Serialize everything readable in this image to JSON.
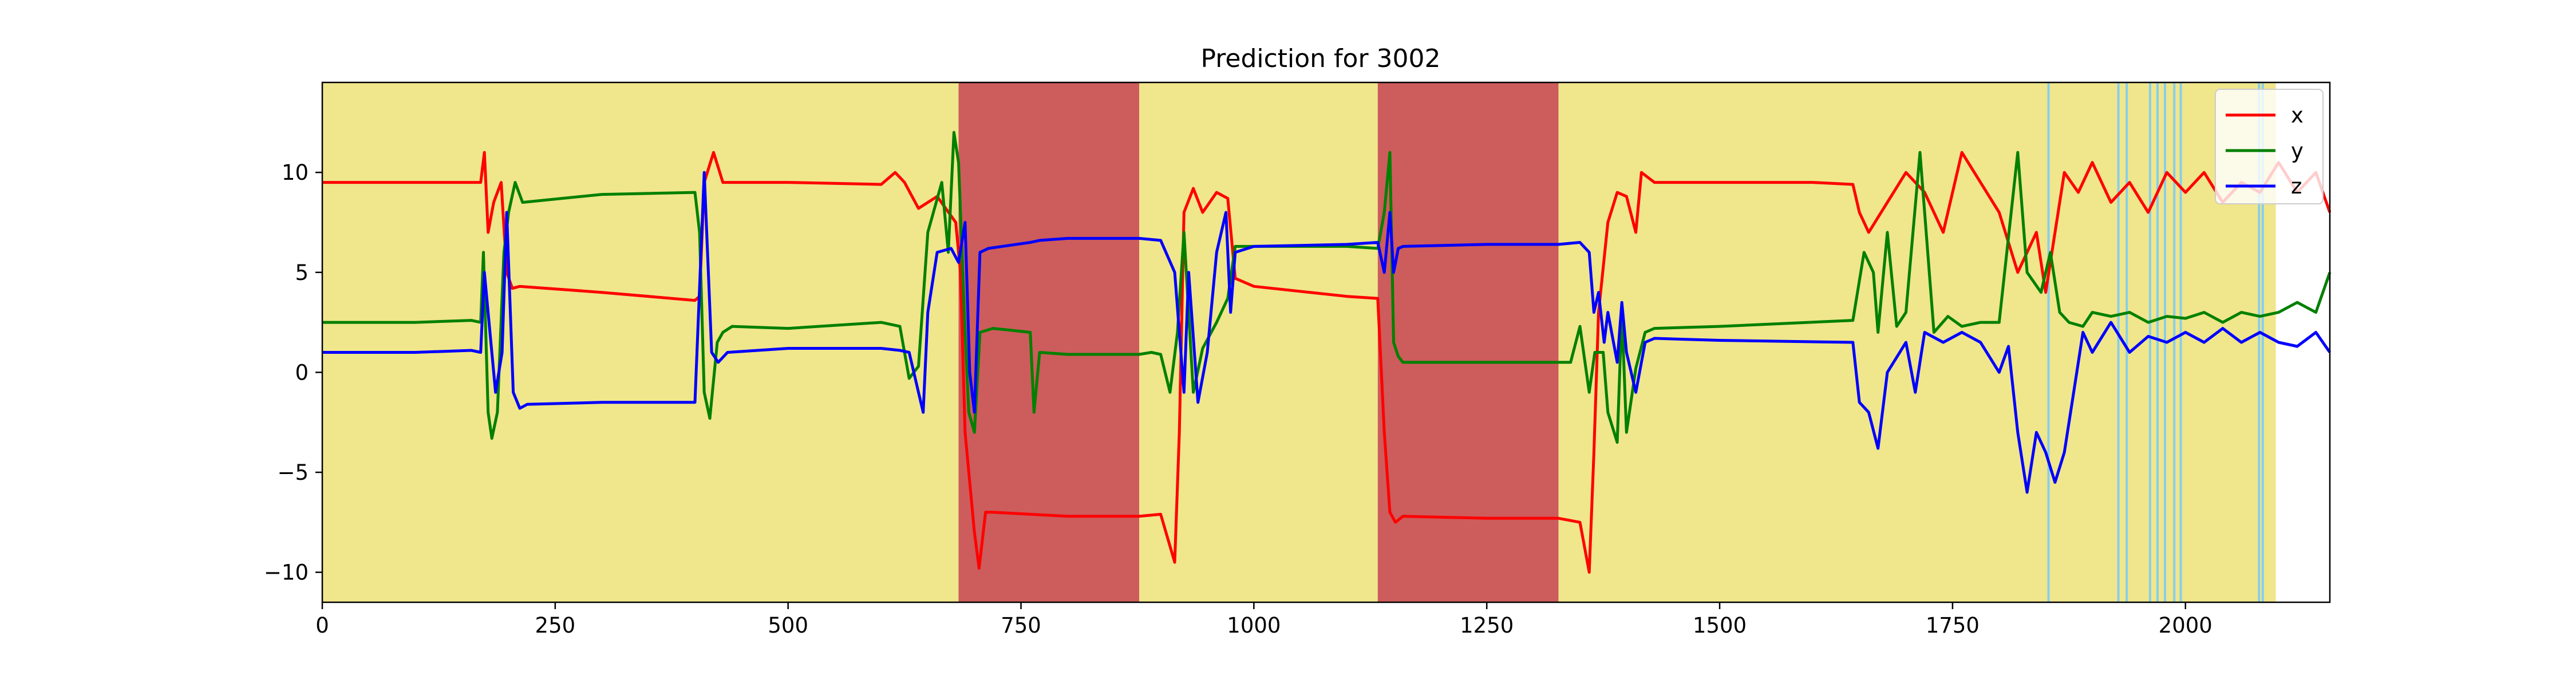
{
  "chart_data": {
    "type": "line",
    "title": "Prediction for 3002",
    "xlabel": "",
    "ylabel": "",
    "xlim": [
      0,
      2155
    ],
    "ylim": [
      -11.5,
      14.5
    ],
    "x_ticks": [
      0,
      250,
      500,
      750,
      1000,
      1250,
      1500,
      1750,
      2000
    ],
    "y_ticks": [
      -10,
      -5,
      0,
      5,
      10
    ],
    "x_tick_labels": [
      "0",
      "250",
      "500",
      "750",
      "1000",
      "1250",
      "1500",
      "1750",
      "2000"
    ],
    "y_tick_labels": [
      "−10",
      "−5",
      "0",
      "5",
      "10"
    ],
    "legend_position": "top-right",
    "grid": false,
    "background_regions": [
      {
        "x0": 0,
        "x1": 683,
        "color": "#f0e68c"
      },
      {
        "x0": 683,
        "x1": 877,
        "color": "#cd5c5c"
      },
      {
        "x0": 877,
        "x1": 1133,
        "color": "#f0e68c"
      },
      {
        "x0": 1133,
        "x1": 1327,
        "color": "#cd5c5c"
      },
      {
        "x0": 1327,
        "x1": 2097,
        "color": "#f0e68c"
      }
    ],
    "vertical_lines": {
      "color": "#87ceeb",
      "x": [
        1853,
        1928,
        1937,
        1962,
        1970,
        1978,
        1988,
        1995,
        2079,
        2083
      ]
    },
    "series": [
      {
        "name": "x",
        "color": "#ff0000",
        "points": [
          [
            0,
            9.5
          ],
          [
            160,
            9.5
          ],
          [
            170,
            9.5
          ],
          [
            174,
            11
          ],
          [
            178,
            7
          ],
          [
            184,
            8.5
          ],
          [
            192,
            9.5
          ],
          [
            198,
            5
          ],
          [
            204,
            4.2
          ],
          [
            212,
            4.3
          ],
          [
            300,
            4
          ],
          [
            400,
            3.6
          ],
          [
            405,
            3.8
          ],
          [
            410,
            9.5
          ],
          [
            420,
            11
          ],
          [
            430,
            9.5
          ],
          [
            500,
            9.5
          ],
          [
            600,
            9.4
          ],
          [
            615,
            10
          ],
          [
            625,
            9.5
          ],
          [
            640,
            8.2
          ],
          [
            660,
            8.8
          ],
          [
            680,
            7.5
          ],
          [
            685,
            5
          ],
          [
            690,
            -3
          ],
          [
            700,
            -8
          ],
          [
            705,
            -9.8
          ],
          [
            712,
            -7
          ],
          [
            720,
            -7
          ],
          [
            800,
            -7.2
          ],
          [
            877,
            -7.2
          ],
          [
            900,
            -7.1
          ],
          [
            915,
            -9.5
          ],
          [
            920,
            -3
          ],
          [
            925,
            8
          ],
          [
            935,
            9.2
          ],
          [
            945,
            8
          ],
          [
            960,
            9
          ],
          [
            972,
            8.7
          ],
          [
            980,
            4.7
          ],
          [
            1000,
            4.3
          ],
          [
            1100,
            3.8
          ],
          [
            1133,
            3.7
          ],
          [
            1140,
            -3
          ],
          [
            1146,
            -7
          ],
          [
            1152,
            -7.5
          ],
          [
            1160,
            -7.2
          ],
          [
            1250,
            -7.3
          ],
          [
            1327,
            -7.3
          ],
          [
            1350,
            -7.5
          ],
          [
            1360,
            -10
          ],
          [
            1365,
            -4
          ],
          [
            1370,
            3
          ],
          [
            1380,
            7.5
          ],
          [
            1390,
            9
          ],
          [
            1400,
            8.8
          ],
          [
            1410,
            7
          ],
          [
            1416,
            10
          ],
          [
            1430,
            9.5
          ],
          [
            1500,
            9.5
          ],
          [
            1600,
            9.5
          ],
          [
            1643,
            9.4
          ],
          [
            1650,
            8
          ],
          [
            1660,
            7
          ],
          [
            1680,
            8.5
          ],
          [
            1700,
            10
          ],
          [
            1720,
            9
          ],
          [
            1740,
            7
          ],
          [
            1760,
            11
          ],
          [
            1780,
            9.5
          ],
          [
            1800,
            8
          ],
          [
            1820,
            5
          ],
          [
            1840,
            7
          ],
          [
            1850,
            4
          ],
          [
            1860,
            7
          ],
          [
            1870,
            10
          ],
          [
            1885,
            9
          ],
          [
            1900,
            10.5
          ],
          [
            1920,
            8.5
          ],
          [
            1940,
            9.5
          ],
          [
            1960,
            8
          ],
          [
            1980,
            10
          ],
          [
            2000,
            9
          ],
          [
            2020,
            10
          ],
          [
            2040,
            8.5
          ],
          [
            2060,
            9.5
          ],
          [
            2080,
            9
          ],
          [
            2100,
            10.5
          ],
          [
            2120,
            9
          ],
          [
            2140,
            10
          ],
          [
            2155,
            8
          ]
        ]
      },
      {
        "name": "y",
        "color": "#008000",
        "points": [
          [
            0,
            2.5
          ],
          [
            100,
            2.5
          ],
          [
            160,
            2.6
          ],
          [
            170,
            2.5
          ],
          [
            173,
            6
          ],
          [
            178,
            -2
          ],
          [
            182,
            -3.3
          ],
          [
            188,
            -2
          ],
          [
            195,
            6
          ],
          [
            200,
            8
          ],
          [
            207,
            9.5
          ],
          [
            215,
            8.5
          ],
          [
            300,
            8.9
          ],
          [
            400,
            9
          ],
          [
            405,
            7
          ],
          [
            410,
            -1
          ],
          [
            416,
            -2.3
          ],
          [
            424,
            1.5
          ],
          [
            430,
            2
          ],
          [
            440,
            2.3
          ],
          [
            500,
            2.2
          ],
          [
            600,
            2.5
          ],
          [
            620,
            2.3
          ],
          [
            630,
            -0.3
          ],
          [
            640,
            0.3
          ],
          [
            650,
            7
          ],
          [
            665,
            9.5
          ],
          [
            672,
            6
          ],
          [
            678,
            12
          ],
          [
            683,
            10.5
          ],
          [
            690,
            2
          ],
          [
            694,
            -2
          ],
          [
            700,
            -3
          ],
          [
            706,
            2
          ],
          [
            720,
            2.2
          ],
          [
            760,
            2
          ],
          [
            764,
            -2
          ],
          [
            770,
            1
          ],
          [
            800,
            0.9
          ],
          [
            877,
            0.9
          ],
          [
            890,
            1
          ],
          [
            900,
            0.9
          ],
          [
            910,
            -1
          ],
          [
            918,
            2
          ],
          [
            925,
            7
          ],
          [
            935,
            -1
          ],
          [
            945,
            1.2
          ],
          [
            960,
            2.5
          ],
          [
            972,
            3.7
          ],
          [
            980,
            6.3
          ],
          [
            1000,
            6.3
          ],
          [
            1100,
            6.3
          ],
          [
            1133,
            6.2
          ],
          [
            1140,
            8
          ],
          [
            1146,
            11
          ],
          [
            1150,
            1.5
          ],
          [
            1155,
            0.8
          ],
          [
            1160,
            0.5
          ],
          [
            1250,
            0.5
          ],
          [
            1327,
            0.5
          ],
          [
            1340,
            0.5
          ],
          [
            1350,
            2.3
          ],
          [
            1360,
            -1
          ],
          [
            1366,
            1
          ],
          [
            1375,
            1
          ],
          [
            1380,
            -2
          ],
          [
            1390,
            -3.5
          ],
          [
            1395,
            3
          ],
          [
            1400,
            -3
          ],
          [
            1410,
            0.2
          ],
          [
            1420,
            2
          ],
          [
            1430,
            2.2
          ],
          [
            1500,
            2.3
          ],
          [
            1643,
            2.6
          ],
          [
            1655,
            6
          ],
          [
            1665,
            5
          ],
          [
            1670,
            2
          ],
          [
            1680,
            7
          ],
          [
            1690,
            2.3
          ],
          [
            1700,
            3
          ],
          [
            1715,
            11
          ],
          [
            1730,
            2
          ],
          [
            1745,
            2.8
          ],
          [
            1760,
            2.3
          ],
          [
            1780,
            2.5
          ],
          [
            1800,
            2.5
          ],
          [
            1820,
            11
          ],
          [
            1830,
            5
          ],
          [
            1845,
            4
          ],
          [
            1855,
            6
          ],
          [
            1865,
            3
          ],
          [
            1875,
            2.5
          ],
          [
            1890,
            2.3
          ],
          [
            1900,
            3
          ],
          [
            1920,
            2.8
          ],
          [
            1940,
            3
          ],
          [
            1960,
            2.5
          ],
          [
            1980,
            2.8
          ],
          [
            2000,
            2.7
          ],
          [
            2020,
            3
          ],
          [
            2040,
            2.5
          ],
          [
            2060,
            3
          ],
          [
            2080,
            2.8
          ],
          [
            2100,
            3
          ],
          [
            2120,
            3.5
          ],
          [
            2140,
            3
          ],
          [
            2155,
            5
          ]
        ]
      },
      {
        "name": "z",
        "color": "#0000ff",
        "points": [
          [
            0,
            1
          ],
          [
            100,
            1
          ],
          [
            160,
            1.1
          ],
          [
            170,
            1
          ],
          [
            174,
            5
          ],
          [
            180,
            2
          ],
          [
            186,
            -1
          ],
          [
            193,
            1
          ],
          [
            198,
            8
          ],
          [
            205,
            -1
          ],
          [
            212,
            -1.8
          ],
          [
            220,
            -1.6
          ],
          [
            300,
            -1.5
          ],
          [
            400,
            -1.5
          ],
          [
            410,
            10
          ],
          [
            418,
            1
          ],
          [
            425,
            0.5
          ],
          [
            435,
            1
          ],
          [
            500,
            1.2
          ],
          [
            600,
            1.2
          ],
          [
            620,
            1.1
          ],
          [
            630,
            1
          ],
          [
            640,
            -1
          ],
          [
            645,
            -2
          ],
          [
            650,
            3
          ],
          [
            660,
            6
          ],
          [
            675,
            6.2
          ],
          [
            683,
            5.5
          ],
          [
            690,
            7.5
          ],
          [
            695,
            0
          ],
          [
            700,
            -2
          ],
          [
            706,
            6
          ],
          [
            715,
            6.2
          ],
          [
            760,
            6.5
          ],
          [
            770,
            6.6
          ],
          [
            800,
            6.7
          ],
          [
            877,
            6.7
          ],
          [
            900,
            6.6
          ],
          [
            915,
            5
          ],
          [
            920,
            2
          ],
          [
            925,
            -1
          ],
          [
            930,
            5
          ],
          [
            940,
            -1.5
          ],
          [
            950,
            1
          ],
          [
            960,
            6
          ],
          [
            970,
            8
          ],
          [
            975,
            3
          ],
          [
            980,
            6
          ],
          [
            1000,
            6.3
          ],
          [
            1100,
            6.4
          ],
          [
            1133,
            6.5
          ],
          [
            1140,
            5
          ],
          [
            1146,
            8
          ],
          [
            1150,
            5
          ],
          [
            1155,
            6.2
          ],
          [
            1160,
            6.3
          ],
          [
            1250,
            6.4
          ],
          [
            1327,
            6.4
          ],
          [
            1350,
            6.5
          ],
          [
            1360,
            6
          ],
          [
            1365,
            3
          ],
          [
            1370,
            4
          ],
          [
            1376,
            1.5
          ],
          [
            1380,
            3
          ],
          [
            1390,
            0.5
          ],
          [
            1395,
            3.5
          ],
          [
            1400,
            1
          ],
          [
            1410,
            -1
          ],
          [
            1420,
            1.5
          ],
          [
            1430,
            1.7
          ],
          [
            1500,
            1.6
          ],
          [
            1643,
            1.5
          ],
          [
            1650,
            -1.5
          ],
          [
            1660,
            -2
          ],
          [
            1670,
            -3.8
          ],
          [
            1680,
            0
          ],
          [
            1700,
            1.5
          ],
          [
            1710,
            -1
          ],
          [
            1720,
            2
          ],
          [
            1740,
            1.5
          ],
          [
            1760,
            2
          ],
          [
            1780,
            1.5
          ],
          [
            1800,
            0
          ],
          [
            1810,
            1.3
          ],
          [
            1820,
            -3
          ],
          [
            1830,
            -6
          ],
          [
            1840,
            -3
          ],
          [
            1850,
            -4
          ],
          [
            1860,
            -5.5
          ],
          [
            1870,
            -4
          ],
          [
            1880,
            -1
          ],
          [
            1890,
            2
          ],
          [
            1900,
            1
          ],
          [
            1920,
            2.5
          ],
          [
            1940,
            1
          ],
          [
            1960,
            1.8
          ],
          [
            1980,
            1.5
          ],
          [
            2000,
            2
          ],
          [
            2020,
            1.5
          ],
          [
            2040,
            2.2
          ],
          [
            2060,
            1.5
          ],
          [
            2080,
            2
          ],
          [
            2100,
            1.5
          ],
          [
            2120,
            1.3
          ],
          [
            2140,
            2
          ],
          [
            2155,
            1
          ]
        ]
      }
    ]
  }
}
